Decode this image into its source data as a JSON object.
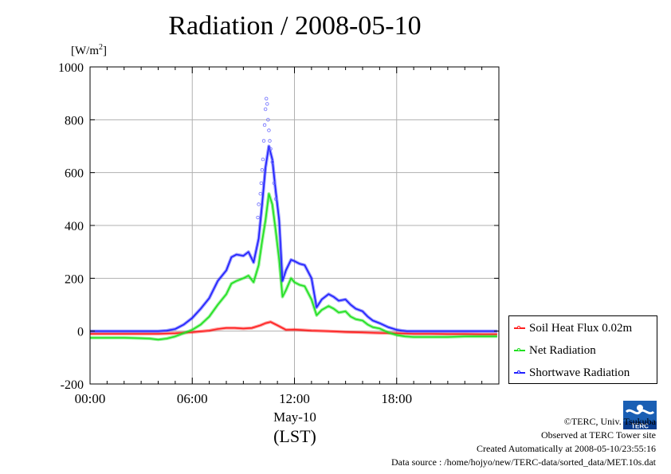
{
  "chart_data": {
    "type": "line",
    "title": "Radiation / 2008-05-10",
    "ylabel": "[W/m",
    "ylabel_sup": "2",
    "ylabel_end": "]",
    "xlabel": "(LST)",
    "xdate": "May-10",
    "ylim": [
      -200,
      1000
    ],
    "xlim": [
      0,
      24
    ],
    "yticks": [
      "-200",
      "0",
      "200",
      "400",
      "600",
      "800",
      "1000"
    ],
    "xticks": [
      "00:00",
      "06:00",
      "12:00",
      "18:00"
    ],
    "grid": true,
    "legend_position": "right-bottom",
    "series": [
      {
        "name": "Soil Heat Flux 0.02m",
        "color": "#ff2020",
        "x": [
          0,
          2,
          4,
          5,
          6,
          7,
          7.5,
          8,
          8.5,
          9,
          9.5,
          10,
          10.3,
          10.6,
          11,
          11.5,
          12,
          13,
          14,
          15,
          16,
          17,
          18,
          19,
          20,
          21,
          22,
          23,
          23.9
        ],
        "y": [
          -10,
          -10,
          -10,
          -8,
          -4,
          2,
          8,
          12,
          12,
          10,
          12,
          22,
          30,
          35,
          22,
          5,
          6,
          2,
          0,
          -3,
          -5,
          -7,
          -8,
          -10,
          -10,
          -11,
          -11,
          -12,
          -12
        ]
      },
      {
        "name": "Net Radiation",
        "color": "#20e020",
        "x": [
          0,
          1,
          2,
          3,
          3.5,
          4,
          4.5,
          5,
          5.5,
          6,
          6.5,
          7,
          7.5,
          8,
          8.3,
          8.6,
          9,
          9.3,
          9.6,
          9.9,
          10.1,
          10.3,
          10.5,
          10.7,
          10.9,
          11.1,
          11.3,
          11.5,
          11.8,
          12,
          12.3,
          12.6,
          13,
          13.3,
          13.6,
          14,
          14.3,
          14.6,
          15,
          15.3,
          15.6,
          16,
          16.3,
          16.6,
          17,
          17.5,
          18,
          18.5,
          19,
          20,
          21,
          22,
          23,
          23.9
        ],
        "y": [
          -25,
          -25,
          -25,
          -27,
          -28,
          -32,
          -28,
          -20,
          -8,
          5,
          25,
          55,
          100,
          140,
          180,
          190,
          200,
          210,
          185,
          250,
          340,
          420,
          520,
          480,
          380,
          270,
          130,
          155,
          200,
          185,
          175,
          170,
          120,
          60,
          80,
          95,
          85,
          70,
          75,
          55,
          45,
          40,
          25,
          15,
          10,
          -5,
          -15,
          -20,
          -22,
          -22,
          -22,
          -20,
          -20,
          -20
        ]
      },
      {
        "name": "Shortwave Radiation",
        "color": "#2020ff",
        "x": [
          0,
          1,
          2,
          3,
          4,
          4.5,
          5,
          5.5,
          6,
          6.5,
          7,
          7.5,
          8,
          8.3,
          8.6,
          9,
          9.3,
          9.6,
          9.9,
          10.1,
          10.3,
          10.5,
          10.7,
          10.9,
          11.1,
          11.3,
          11.5,
          11.8,
          12,
          12.3,
          12.6,
          13,
          13.3,
          13.6,
          14,
          14.3,
          14.6,
          15,
          15.3,
          15.6,
          16,
          16.3,
          16.6,
          17,
          17.5,
          18,
          18.3,
          18.6,
          19,
          20,
          21,
          22,
          23,
          23.9
        ],
        "y": [
          0,
          0,
          0,
          0,
          0,
          2,
          8,
          25,
          50,
          85,
          125,
          190,
          230,
          280,
          290,
          285,
          300,
          260,
          350,
          480,
          620,
          700,
          650,
          530,
          420,
          190,
          230,
          270,
          265,
          255,
          250,
          200,
          90,
          120,
          140,
          130,
          115,
          120,
          100,
          85,
          75,
          55,
          40,
          30,
          15,
          5,
          2,
          0,
          0,
          0,
          0,
          0,
          0,
          0
        ]
      }
    ],
    "scatter_outliers": {
      "series": "Shortwave Radiation",
      "x": [
        9.85,
        9.9,
        10.0,
        10.05,
        10.1,
        10.15,
        10.2,
        10.25,
        10.3,
        10.35,
        10.4,
        10.45,
        10.5,
        10.55,
        10.6,
        10.7,
        10.8,
        10.9
      ],
      "y": [
        430,
        480,
        520,
        560,
        610,
        650,
        720,
        780,
        840,
        880,
        860,
        800,
        760,
        720,
        690,
        640,
        560,
        500
      ]
    }
  },
  "credits": {
    "copyright": "©TERC, Univ. Tsukuba",
    "observed": "Observed at TERC Tower site",
    "created": "Created Automatically at 2008-05-10/23:55:16",
    "source": "Data source : /home/hojyo/new/TERC-data/sorted_data/MET.10s.dat"
  },
  "logo_text": "TERC"
}
